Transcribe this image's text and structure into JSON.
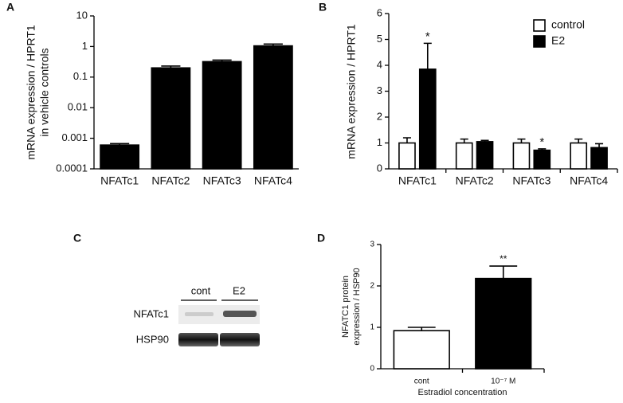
{
  "chart_data": [
    {
      "type": "bar",
      "panel_label": "A",
      "ylabel": [
        "mRNA expression / HPRT1",
        "in vehicle controls"
      ],
      "log_scale": true,
      "categories": [
        "NFATc1",
        "NFATc2",
        "NFATc3",
        "NFATc4"
      ],
      "series": [
        {
          "color": "#000000",
          "values": [
            0.0006,
            0.2,
            0.32,
            1.05
          ],
          "errors": [
            7e-05,
            0.03,
            0.04,
            0.15
          ]
        }
      ],
      "ylim": [
        0.0001,
        10
      ],
      "yticks": [
        0.0001,
        0.001,
        0.01,
        0.1,
        1,
        10
      ]
    },
    {
      "type": "bar",
      "panel_label": "B",
      "ylabel": [
        "mRNA expression / HPRT1"
      ],
      "legend": "upper right",
      "categories": [
        "NFATc1",
        "NFATc2",
        "NFATc3",
        "NFATc4"
      ],
      "series": [
        {
          "name": "control",
          "color": "#ffffff",
          "values": [
            1.0,
            1.0,
            1.0,
            1.0
          ],
          "errors": [
            0.2,
            0.15,
            0.15,
            0.15
          ],
          "annotations": [
            null,
            null,
            null,
            null
          ]
        },
        {
          "name": "E2",
          "color": "#000000",
          "values": [
            3.85,
            1.05,
            0.72,
            0.82
          ],
          "errors": [
            1.0,
            0.05,
            0.05,
            0.15
          ],
          "annotations": [
            "*",
            null,
            "*",
            null
          ]
        }
      ],
      "ylim": [
        0,
        6
      ],
      "yticks": [
        0,
        1,
        2,
        3,
        4,
        5,
        6
      ]
    },
    {
      "type": "bar",
      "panel_label": "D",
      "ylabel": [
        "NFATC1 protein",
        "expression / HSP90"
      ],
      "xlabel": "Estradiol concentration",
      "categories": [
        "cont",
        "10⁻⁷ M"
      ],
      "series": [
        {
          "color": [
            "#ffffff",
            "#000000"
          ],
          "values": [
            0.92,
            2.18
          ],
          "errors": [
            0.08,
            0.3
          ],
          "annotations": [
            null,
            "**"
          ]
        }
      ],
      "ylim": [
        0,
        3
      ],
      "yticks": [
        0,
        1,
        2,
        3
      ]
    }
  ],
  "blot": {
    "panel_label": "C",
    "lanes": [
      "cont",
      "E2"
    ],
    "rows": [
      "NFATc1",
      "HSP90"
    ]
  }
}
